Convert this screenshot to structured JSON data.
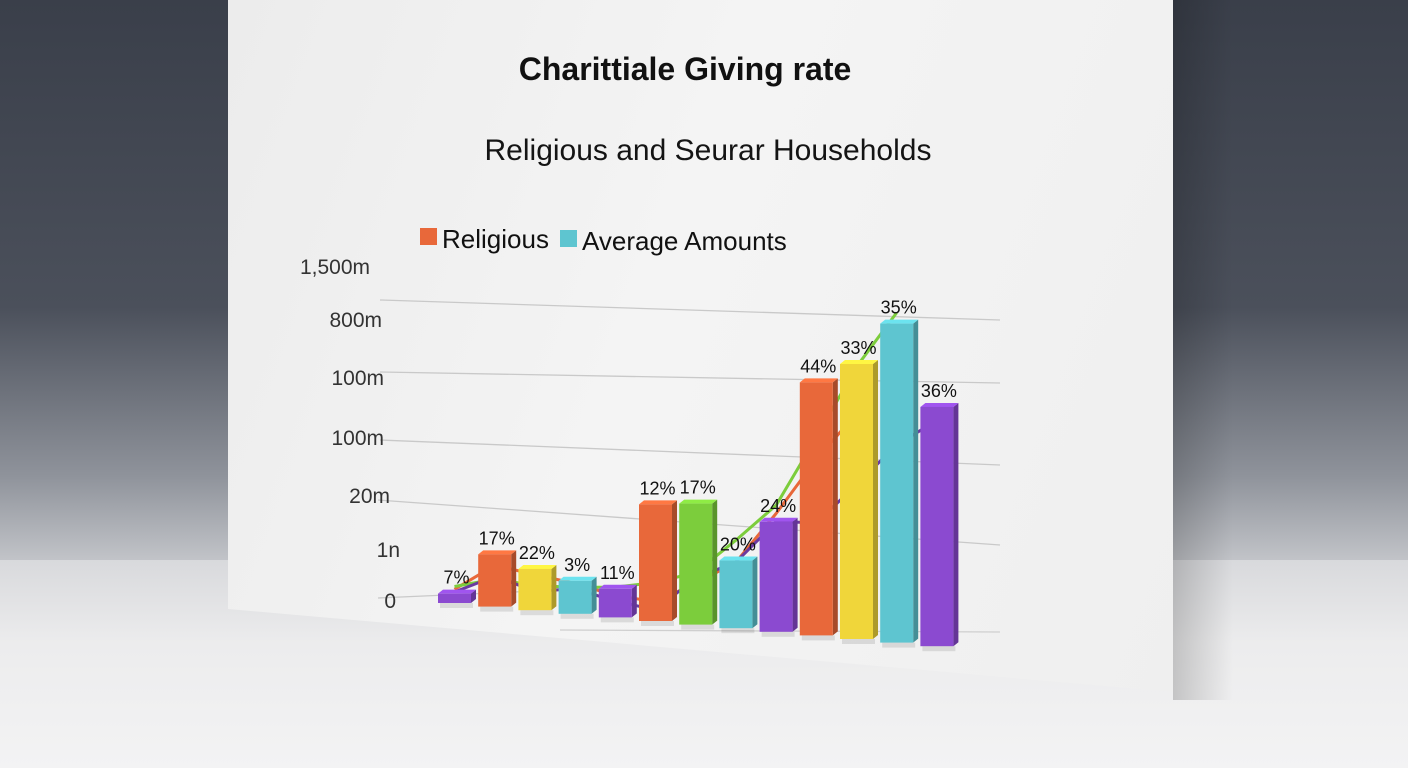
{
  "chart_data": {
    "type": "bar",
    "title": "Charittiale Giving rate",
    "subtitle": "Religious and Seurar Households",
    "legend": [
      {
        "label": "Religious",
        "color": "#e8683a"
      },
      {
        "label": "Average Amounts",
        "color": "#5ec5d0"
      }
    ],
    "y_tick_labels": [
      "0",
      "1n",
      "20m",
      "100m",
      "100m",
      "800m",
      "1,500m"
    ],
    "bars": [
      {
        "label": "7%",
        "level": 0.17,
        "color": "#8b4ad0"
      },
      {
        "label": "17%",
        "level": 0.95,
        "color": "#e8683a"
      },
      {
        "label": "22%",
        "level": 0.75,
        "color": "#f0d63a"
      },
      {
        "label": "3%",
        "level": 0.6,
        "color": "#5ec5d0"
      },
      {
        "label": "11%",
        "level": 0.52,
        "color": "#8b4ad0"
      },
      {
        "label": "12%",
        "level": 2.12,
        "color": "#e8683a"
      },
      {
        "label": "17%",
        "level": 2.2,
        "color": "#7ccd3c"
      },
      {
        "label": "20%",
        "level": 1.23,
        "color": "#5ec5d0"
      },
      {
        "label": "24%",
        "level": 2.0,
        "color": "#8b4ad0"
      },
      {
        "label": "44%",
        "level": 4.6,
        "color": "#e8683a"
      },
      {
        "label": "33%",
        "level": 5.0,
        "color": "#f0d63a"
      },
      {
        "label": "35%",
        "level": 5.8,
        "color": "#5ec5d0"
      },
      {
        "label": "36%",
        "level": 4.35,
        "color": "#8b4ad0"
      }
    ],
    "lines": [
      {
        "color": "#e8683a",
        "levels": [
          0.25,
          0.75,
          0.65,
          0.55,
          0.4,
          0.35,
          0.75,
          1.2,
          2.15,
          3.2,
          4.1,
          null,
          null
        ]
      },
      {
        "color": "#7ccd3c",
        "levels": [
          0.3,
          0.5,
          0.45,
          0.48,
          0.55,
          0.7,
          0.95,
          1.6,
          2.3,
          3.6,
          4.95,
          6.0,
          null
        ]
      },
      {
        "color": "#6a3aa0",
        "levels": [
          0.2,
          0.55,
          0.35,
          0.45,
          0.3,
          0.2,
          0.85,
          1.2,
          2.0,
          2.05,
          2.8,
          3.6,
          4.1
        ]
      }
    ]
  }
}
